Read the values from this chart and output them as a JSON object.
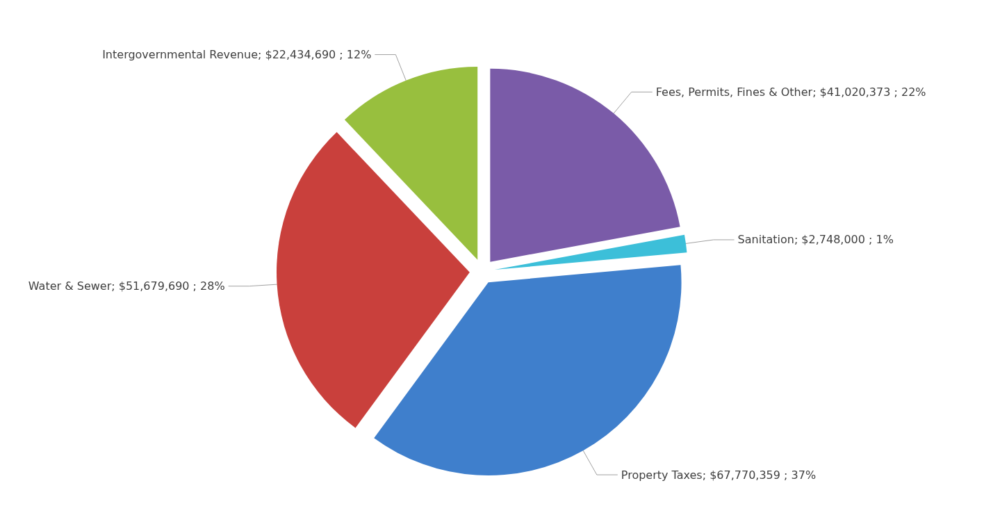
{
  "chart_data": {
    "type": "pie",
    "categories": [
      "Fees, Permits, Fines & Other",
      "Sanitation",
      "Property Taxes",
      "Water & Sewer",
      "Intergovernmental Revenue"
    ],
    "values": [
      41020373,
      2748000,
      67770359,
      51679690,
      22434690
    ],
    "value_labels": [
      "$41,020,373 ; 22%",
      "$2,748,000 ; 1%",
      "$67,770,359 ; 37%",
      "$51,679,690 ; 28%",
      "$22,434,690 ; 12%"
    ],
    "colors": [
      "#7a5ba8",
      "#3cbfd9",
      "#3f7fcc",
      "#c9403c",
      "#98bf3e"
    ]
  }
}
